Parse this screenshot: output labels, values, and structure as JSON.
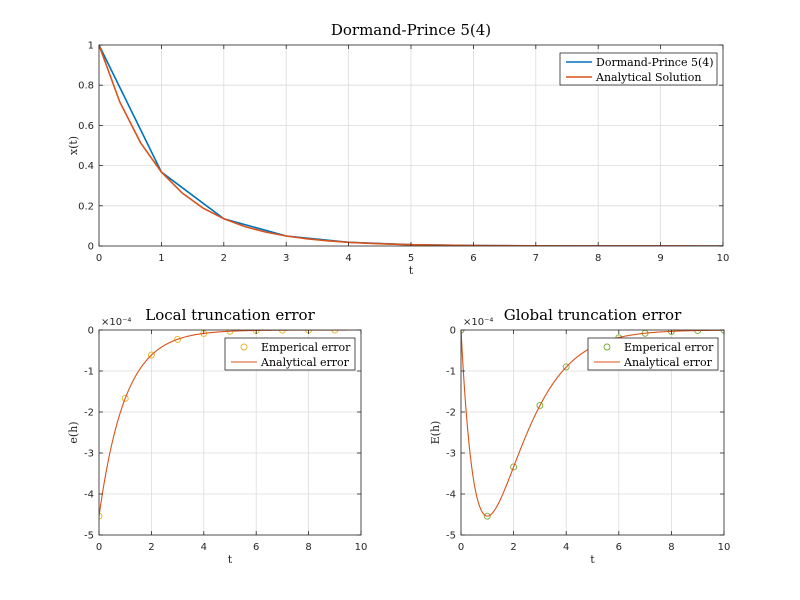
{
  "colors": {
    "series_blue": "#0072BD",
    "series_orange": "#D95319",
    "marker_orange": "#EDB120",
    "marker_green": "#77AC30",
    "grid": "#dcdcdc",
    "axis": "#262626"
  },
  "chart_data": [
    {
      "id": "main",
      "type": "line",
      "title": "Dormand-Prince 5(4)",
      "xlabel": "t",
      "ylabel": "x(t)",
      "xlim": [
        0,
        10
      ],
      "ylim": [
        0,
        1
      ],
      "xticks": [
        0,
        1,
        2,
        3,
        4,
        5,
        6,
        7,
        8,
        9,
        10
      ],
      "yticks": [
        0,
        0.2,
        0.4,
        0.6,
        0.8,
        1
      ],
      "exponent_label": "",
      "grid": true,
      "legend_position": "top-right",
      "series": [
        {
          "name": "Dormand-Prince 5(4)",
          "kind": "line",
          "color": "#0072BD",
          "x": [
            0,
            1,
            2,
            3,
            4,
            5,
            6,
            7,
            8,
            9,
            10
          ],
          "y": [
            1,
            0.3679,
            0.1353,
            0.0498,
            0.0183,
            0.0067,
            0.0025,
            0.0009,
            0.0003,
            0.0001,
            5e-05
          ]
        },
        {
          "name": "Analytical Solution",
          "kind": "line",
          "color": "#D95319",
          "function": "exp",
          "scale": 1,
          "x_range": [
            0,
            10
          ],
          "samples": 30
        }
      ]
    },
    {
      "id": "local",
      "type": "scatter",
      "title": "Local truncation error",
      "xlabel": "t",
      "ylabel": "e(h)",
      "xlim": [
        0,
        10
      ],
      "ylim": [
        -5,
        0
      ],
      "xticks": [
        0,
        2,
        4,
        6,
        8,
        10
      ],
      "yticks": [
        -5,
        -4,
        -3,
        -2,
        -1,
        0
      ],
      "exponent_label": "×10⁻⁴",
      "grid": true,
      "legend_position": "top-right",
      "series": [
        {
          "name": "Emperical error",
          "kind": "markers",
          "color": "#EDB120",
          "x": [
            0,
            1,
            2,
            3,
            4,
            5,
            6,
            7,
            8,
            9
          ],
          "y": [
            -4.54,
            -1.67,
            -0.61,
            -0.23,
            -0.083,
            -0.031,
            -0.011,
            -0.004,
            -0.0015,
            -0.0006
          ]
        },
        {
          "name": "Analytical error",
          "kind": "line",
          "color": "#D95319",
          "function": "local_err",
          "scale": -4.54,
          "x_range": [
            0,
            10
          ],
          "samples": 200
        }
      ]
    },
    {
      "id": "global",
      "type": "scatter",
      "title": "Global truncation error",
      "xlabel": "t",
      "ylabel": "E(h)",
      "xlim": [
        0,
        10
      ],
      "ylim": [
        -5,
        0
      ],
      "xticks": [
        0,
        2,
        4,
        6,
        8,
        10
      ],
      "yticks": [
        -5,
        -4,
        -3,
        -2,
        -1,
        0
      ],
      "exponent_label": "×10⁻⁴",
      "grid": true,
      "legend_position": "top-right",
      "series": [
        {
          "name": "Emperical error",
          "kind": "markers",
          "color": "#77AC30",
          "x": [
            0,
            1,
            2,
            3,
            4,
            5,
            6,
            7,
            8,
            9,
            10
          ],
          "y": [
            0,
            -4.54,
            -3.34,
            -1.84,
            -0.9,
            -0.42,
            -0.19,
            -0.08,
            -0.034,
            -0.014,
            -0.006
          ]
        },
        {
          "name": "Analytical error",
          "kind": "line",
          "color": "#D95319",
          "function": "global_err",
          "scale": -12.34,
          "x_range": [
            0,
            10
          ],
          "samples": 200
        }
      ]
    }
  ]
}
